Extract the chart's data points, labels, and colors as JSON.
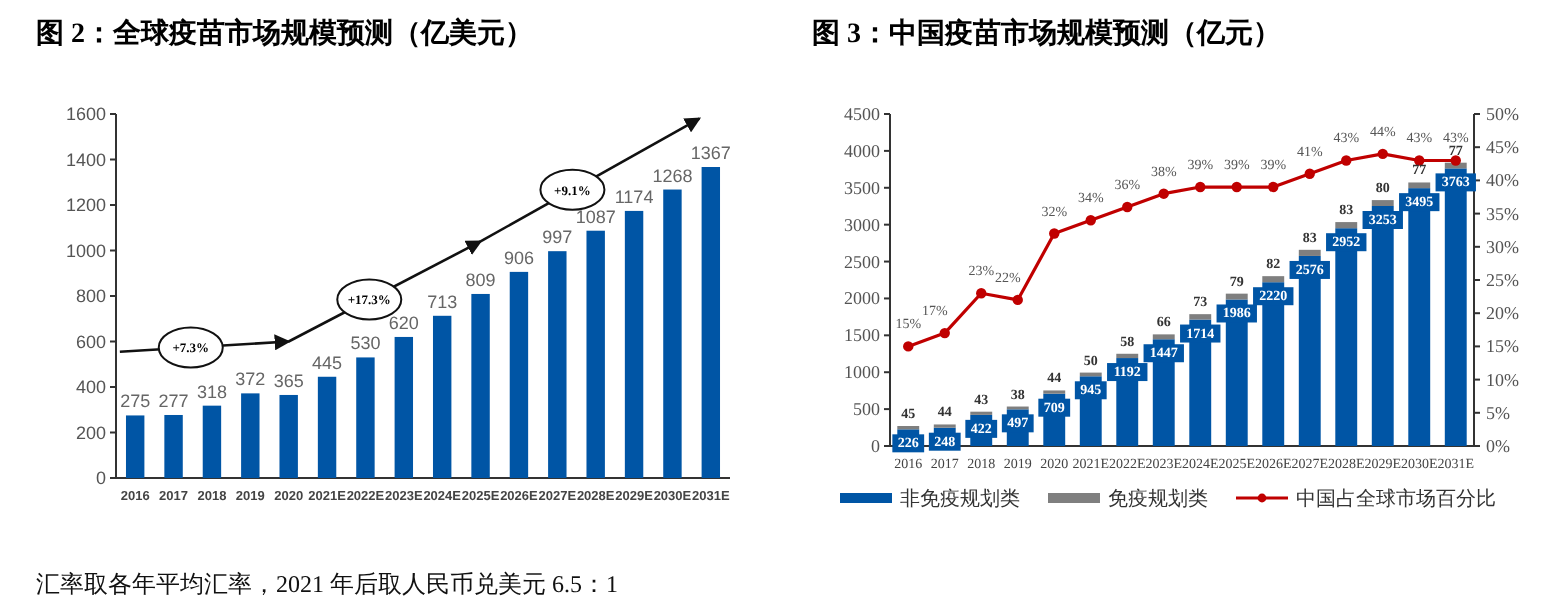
{
  "chart_data": [
    {
      "type": "bar",
      "title": "图 2：全球疫苗市场规模预测（亿美元）",
      "categories": [
        "2016",
        "2017",
        "2018",
        "2019",
        "2020",
        "2021E",
        "2022E",
        "2023E",
        "2024E",
        "2025E",
        "2026E",
        "2027E",
        "2028E",
        "2029E",
        "2030E",
        "2031E"
      ],
      "values": [
        275,
        277,
        318,
        372,
        365,
        445,
        530,
        620,
        713,
        809,
        906,
        997,
        1087,
        1174,
        1268,
        1367
      ],
      "color": "#0055a5",
      "ylim": [
        0,
        1600
      ],
      "yticks": [
        0,
        200,
        400,
        600,
        800,
        1000,
        1200,
        1400,
        1600
      ],
      "data_labels": true,
      "annotations": [
        "+7.3%",
        "+17.3%",
        "+9.1%",
        "汇率取各年平均汇率，2021 年后取人民币兑美元 6.5：1"
      ]
    },
    {
      "type": "bar",
      "stacked": true,
      "title": "图 3：中国疫苗市场规模预测（亿元）",
      "categories": [
        "2016",
        "2017",
        "2018",
        "2019",
        "2020",
        "2021E",
        "2022E",
        "2023E",
        "2024E",
        "2025E",
        "2026E",
        "2027E",
        "2028E",
        "2029E",
        "2030E",
        "2031E"
      ],
      "series": [
        {
          "name": "非免疫规划类",
          "color": "#0055a5",
          "values": [
            226,
            248,
            422,
            497,
            709,
            945,
            1192,
            1447,
            1714,
            1986,
            2220,
            2576,
            2952,
            3253,
            3495,
            3763
          ],
          "value_labels": [
            "226",
            "248",
            "422",
            "497",
            "709",
            "945",
            "1192",
            "1447",
            "1714",
            "1986",
            "2220",
            "2576",
            "2952",
            "3253",
            "3495",
            "3763"
          ]
        },
        {
          "name": "免疫规划类",
          "color": "#7f7f7f",
          "values": [
            45,
            44,
            43,
            38,
            44,
            50,
            58,
            66,
            73,
            79,
            82,
            83,
            83,
            80,
            77,
            77
          ],
          "value_labels": [
            "45",
            "44",
            "43",
            "38",
            "44",
            "50",
            "58",
            "66",
            "73",
            "79",
            "82",
            "83",
            "83",
            "80",
            "77",
            "77"
          ]
        },
        {
          "name": "中国占全球市场百分比",
          "type": "line",
          "axis": "y2",
          "color": "#c00000",
          "marker": "circle",
          "values": [
            15,
            17,
            23,
            22,
            32,
            34,
            36,
            38,
            39,
            39,
            39,
            41,
            43,
            44,
            43,
            43
          ],
          "value_labels": [
            "15%",
            "17%",
            "23%",
            "22%",
            "32%",
            "34%",
            "36%",
            "38%",
            "39%",
            "39%",
            "39%",
            "41%",
            "43%",
            "44%",
            "43%",
            "43%"
          ]
        }
      ],
      "ylim": [
        0,
        4500
      ],
      "yticks": [
        0,
        500,
        1000,
        1500,
        2000,
        2500,
        3000,
        3500,
        4000,
        4500
      ],
      "y2lim": [
        0,
        50
      ],
      "y2ticks": [
        {
          "value": 0,
          "label": "0%"
        },
        {
          "value": 5,
          "label": "5%"
        },
        {
          "value": 10,
          "label": "10%"
        },
        {
          "value": 15,
          "label": "15%"
        },
        {
          "value": 20,
          "label": "20%"
        },
        {
          "value": 25,
          "label": "25%"
        },
        {
          "value": 30,
          "label": "30%"
        },
        {
          "value": 35,
          "label": "35%"
        },
        {
          "value": 40,
          "label": "40%"
        },
        {
          "value": 45,
          "label": "45%"
        },
        {
          "value": 50,
          "label": "50%"
        }
      ],
      "legend": "bottom"
    }
  ]
}
